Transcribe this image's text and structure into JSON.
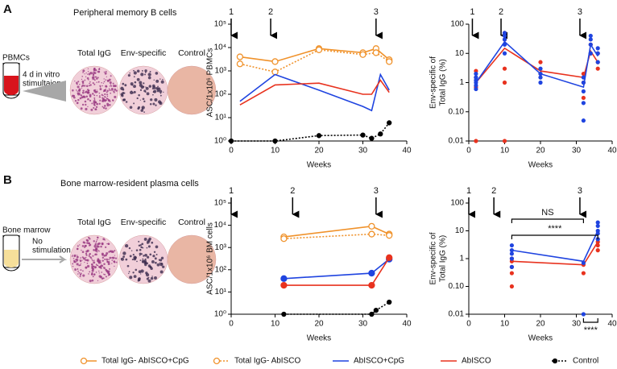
{
  "panels": [
    {
      "label": "A",
      "title": "Peripheral memory B cells",
      "source": "PBMCs",
      "treatment": [
        "4 d in vitro",
        "stimultaion"
      ],
      "wells": [
        "Total IgG",
        "Env-specific",
        "Control"
      ]
    },
    {
      "label": "B",
      "title": "Bone marrow-resident plasma cells",
      "source": "Bone marrow",
      "treatment": [
        "No",
        "stimulation"
      ],
      "wells": [
        "Total IgG",
        "Env-specific",
        "Control"
      ]
    }
  ],
  "chart_data": [
    {
      "type": "line",
      "xlabel": "Weeks",
      "ylabel": "ASC/1x10⁶ PBMCs",
      "log_y": true,
      "xlim": [
        0,
        40
      ],
      "xticks": [
        0,
        10,
        20,
        30,
        40
      ],
      "ylim": [
        1,
        100000
      ],
      "yticks": [
        {
          "value": 1,
          "label": "10⁰"
        },
        {
          "value": 10,
          "label": "10¹"
        },
        {
          "value": 100,
          "label": "10²"
        },
        {
          "value": 1000,
          "label": "10³"
        },
        {
          "value": 10000,
          "label": "10⁴"
        },
        {
          "value": 100000,
          "label": "10⁵"
        }
      ],
      "arrows": {
        "x": [
          0,
          9,
          33
        ],
        "labels": [
          "1",
          "2",
          "3"
        ]
      },
      "series": [
        {
          "name": "Total IgG- AbISCO+CpG",
          "color": "#f0922b",
          "line": "solid",
          "marker": "open",
          "x": [
            2,
            10,
            20,
            30,
            33,
            36
          ],
          "values": [
            4000,
            2500,
            9000,
            6000,
            9000,
            3000
          ]
        },
        {
          "name": "Total IgG- AbISCO",
          "color": "#f0922b",
          "line": "dotted",
          "marker": "open",
          "x": [
            2,
            10,
            20,
            30,
            33,
            36
          ],
          "values": [
            2000,
            900,
            8000,
            5000,
            6000,
            2500
          ]
        },
        {
          "name": "AbISCO+CpG",
          "color": "#1f44e0",
          "line": "solid",
          "marker": "none",
          "x": [
            2,
            10,
            20,
            30,
            32,
            34,
            36
          ],
          "values": [
            50,
            700,
            150,
            30,
            20,
            700,
            150
          ]
        },
        {
          "name": "AbISCO",
          "color": "#e8321e",
          "line": "solid",
          "marker": "none",
          "x": [
            2,
            10,
            20,
            30,
            32,
            34,
            36
          ],
          "values": [
            35,
            250,
            300,
            100,
            100,
            400,
            120
          ]
        },
        {
          "name": "Control",
          "color": "#000000",
          "line": "dotted",
          "marker": "filled",
          "x": [
            0,
            10,
            20,
            30,
            32,
            34,
            36
          ],
          "values": [
            1,
            1,
            1.7,
            1.8,
            1.3,
            2,
            6
          ]
        }
      ]
    },
    {
      "type": "scatter",
      "xlabel": "Weeks",
      "ylabel": [
        "Env-specific of",
        "Total IgG (%)"
      ],
      "log_y": true,
      "xlim": [
        0,
        40
      ],
      "xticks": [
        0,
        10,
        20,
        30,
        40
      ],
      "ylim": [
        0.01,
        100
      ],
      "yticks": [
        0.01,
        {
          "value": 0.1,
          "label": "0.10"
        },
        1,
        10,
        100
      ],
      "arrows": {
        "x": [
          1,
          9,
          31
        ],
        "labels": [
          "1",
          "2",
          "3"
        ]
      },
      "series": [
        {
          "color": "#e8321e",
          "x": [
            2,
            2,
            2,
            2,
            10,
            10,
            10,
            10,
            10,
            20,
            20,
            32,
            32,
            32,
            34,
            34,
            36,
            36,
            36
          ],
          "values": [
            0.01,
            0.7,
            1.5,
            2.5,
            0.01,
            1,
            3,
            30,
            50,
            2,
            5,
            0.3,
            1,
            2,
            10,
            20,
            3,
            5,
            10
          ],
          "mean": {
            "x": [
              2,
              10,
              20,
              32,
              34,
              36
            ],
            "values": [
              1,
              15,
              2.5,
              1.5,
              12,
              5
            ]
          }
        },
        {
          "color": "#1f44e0",
          "x": [
            2,
            2,
            2,
            2,
            2,
            2,
            10,
            10,
            10,
            10,
            10,
            20,
            20,
            20,
            20,
            32,
            32,
            32,
            32,
            32,
            34,
            34,
            34,
            34,
            36,
            36,
            36
          ],
          "values": [
            0.6,
            0.8,
            1,
            1.2,
            1.5,
            2,
            10,
            20,
            30,
            40,
            50,
            1,
            1.5,
            2,
            3,
            0.05,
            0.2,
            0.5,
            1,
            1.5,
            10,
            20,
            30,
            40,
            5,
            10,
            15
          ],
          "mean": {
            "x": [
              2,
              10,
              20,
              32,
              34,
              36
            ],
            "values": [
              1,
              25,
              2,
              0.7,
              20,
              8
            ]
          }
        }
      ]
    },
    {
      "type": "line",
      "xlabel": "Weeks",
      "ylabel": "ASC/1x10⁶ BM cells",
      "log_y": true,
      "xlim": [
        0,
        40
      ],
      "xticks": [
        0,
        10,
        20,
        30,
        40
      ],
      "ylim": [
        1,
        100000
      ],
      "yticks": [
        {
          "value": 1,
          "label": "10⁰"
        },
        {
          "value": 10,
          "label": "10¹"
        },
        {
          "value": 100,
          "label": "10²"
        },
        {
          "value": 1000,
          "label": "10³"
        },
        {
          "value": 10000,
          "label": "10⁴"
        },
        {
          "value": 100000,
          "label": "10⁵"
        }
      ],
      "arrows": {
        "x": [
          0,
          14,
          33
        ],
        "labels": [
          "1",
          "2",
          "3"
        ]
      },
      "series": [
        {
          "color": "#f0922b",
          "line": "solid",
          "marker": "open",
          "x": [
            12,
            32,
            36
          ],
          "values": [
            3000,
            9000,
            4000
          ]
        },
        {
          "color": "#f0922b",
          "line": "dotted",
          "marker": "open",
          "x": [
            12,
            32,
            36
          ],
          "values": [
            2500,
            4000,
            3500
          ]
        },
        {
          "color": "#1f44e0",
          "line": "solid",
          "marker": "filled",
          "x": [
            12,
            32,
            36
          ],
          "values": [
            40,
            70,
            300
          ]
        },
        {
          "color": "#e8321e",
          "line": "solid",
          "marker": "filled",
          "x": [
            12,
            32,
            36
          ],
          "values": [
            20,
            20,
            350
          ]
        },
        {
          "color": "#000000",
          "line": "dotted",
          "marker": "filled",
          "x": [
            12,
            32,
            33,
            36
          ],
          "values": [
            1,
            1,
            1.5,
            3.5
          ]
        }
      ]
    },
    {
      "type": "scatter",
      "xlabel": "Weeks",
      "ylabel": [
        "Env-specific of",
        "Total IgG (%)"
      ],
      "log_y": true,
      "xlim": [
        0,
        40
      ],
      "xticks": [
        0,
        10,
        20,
        30,
        40
      ],
      "ylim": [
        0.01,
        100
      ],
      "yticks": [
        0.01,
        {
          "value": 0.1,
          "label": "0.10"
        },
        1,
        10,
        100
      ],
      "arrows": {
        "x": [
          0,
          7,
          31
        ],
        "labels": [
          "1",
          "2",
          "3"
        ]
      },
      "annotations": [
        "NS",
        "****",
        "****"
      ],
      "series": [
        {
          "color": "#e8321e",
          "x": [
            12,
            12,
            12,
            12,
            12,
            32,
            32,
            36,
            36,
            36,
            36
          ],
          "values": [
            0.1,
            0.3,
            0.5,
            0.8,
            1,
            0.3,
            0.6,
            2,
            3,
            4,
            5
          ],
          "mean": {
            "x": [
              12,
              32,
              36
            ],
            "values": [
              0.8,
              0.6,
              4
            ]
          }
        },
        {
          "color": "#1f44e0",
          "x": [
            12,
            12,
            12,
            12,
            12,
            32,
            32,
            36,
            36,
            36,
            36,
            36
          ],
          "values": [
            0.5,
            1,
            1.5,
            2,
            3,
            0.01,
            0.7,
            5,
            8,
            10,
            15,
            20
          ],
          "mean": {
            "x": [
              12,
              32,
              36
            ],
            "values": [
              2,
              0.8,
              10
            ]
          }
        }
      ]
    }
  ]
}
